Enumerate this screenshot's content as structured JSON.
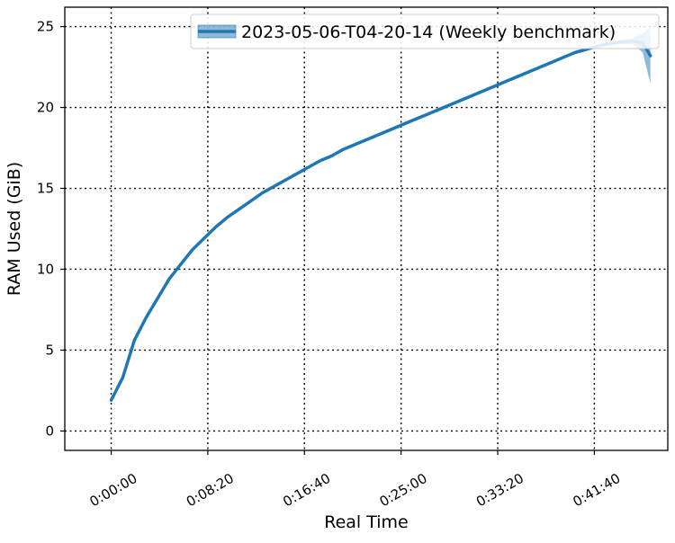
{
  "chart_data": {
    "type": "line",
    "xlabel": "Real Time",
    "ylabel": "RAM Used (GiB)",
    "xlim": [
      -240,
      2880
    ],
    "ylim": [
      -1.2,
      26.2
    ],
    "x_ticks": [
      0,
      500,
      1000,
      1500,
      2000,
      2500
    ],
    "x_tick_labels": [
      "0:00:00",
      "0:08:20",
      "0:16:40",
      "0:25:00",
      "0:33:20",
      "0:41:40"
    ],
    "y_ticks": [
      0,
      5,
      10,
      15,
      20,
      25
    ],
    "y_tick_labels": [
      "0",
      "5",
      "10",
      "15",
      "20",
      "25"
    ],
    "grid": true,
    "legend_position": "top-right",
    "series": [
      {
        "name": "2023-05-06-T04-20-14 (Weekly benchmark)",
        "color": "#1f77b4",
        "x": [
          0,
          60,
          120,
          180,
          240,
          300,
          360,
          420,
          480,
          540,
          600,
          660,
          720,
          780,
          840,
          900,
          960,
          1020,
          1080,
          1140,
          1200,
          1260,
          1320,
          1380,
          1440,
          1500,
          1560,
          1620,
          1680,
          1740,
          1800,
          1860,
          1920,
          1980,
          2040,
          2100,
          2160,
          2220,
          2280,
          2340,
          2400,
          2460,
          2520,
          2580,
          2640,
          2700,
          2750,
          2790
        ],
        "y": [
          1.9,
          3.3,
          5.6,
          7.0,
          8.2,
          9.4,
          10.3,
          11.2,
          11.9,
          12.6,
          13.2,
          13.7,
          14.2,
          14.7,
          15.1,
          15.5,
          15.9,
          16.3,
          16.7,
          17.0,
          17.4,
          17.7,
          18.0,
          18.3,
          18.6,
          18.9,
          19.2,
          19.5,
          19.8,
          20.1,
          20.4,
          20.7,
          21.0,
          21.3,
          21.6,
          21.9,
          22.2,
          22.5,
          22.8,
          23.1,
          23.4,
          23.6,
          23.8,
          23.95,
          24.05,
          24.1,
          24.0,
          23.2
        ],
        "band_low": [
          1.8,
          3.2,
          5.5,
          6.9,
          8.1,
          9.3,
          10.2,
          11.1,
          11.8,
          12.5,
          13.1,
          13.6,
          14.1,
          14.6,
          15.0,
          15.4,
          15.8,
          16.2,
          16.6,
          16.9,
          17.3,
          17.6,
          17.9,
          18.2,
          18.5,
          18.8,
          19.1,
          19.4,
          19.7,
          20.0,
          20.3,
          20.6,
          20.9,
          21.2,
          21.5,
          21.8,
          22.1,
          22.4,
          22.7,
          23.0,
          23.3,
          23.5,
          23.7,
          23.85,
          23.95,
          23.9,
          23.4,
          21.5
        ],
        "band_high": [
          2.0,
          3.4,
          5.7,
          7.1,
          8.3,
          9.5,
          10.4,
          11.3,
          12.0,
          12.7,
          13.3,
          13.8,
          14.3,
          14.8,
          15.2,
          15.6,
          16.0,
          16.4,
          16.8,
          17.1,
          17.5,
          17.8,
          18.1,
          18.4,
          18.7,
          19.0,
          19.3,
          19.6,
          19.9,
          20.2,
          20.5,
          20.8,
          21.1,
          21.4,
          21.7,
          22.0,
          22.3,
          22.6,
          22.9,
          23.2,
          23.5,
          23.7,
          23.9,
          24.05,
          24.15,
          24.3,
          24.6,
          24.9
        ]
      }
    ]
  }
}
